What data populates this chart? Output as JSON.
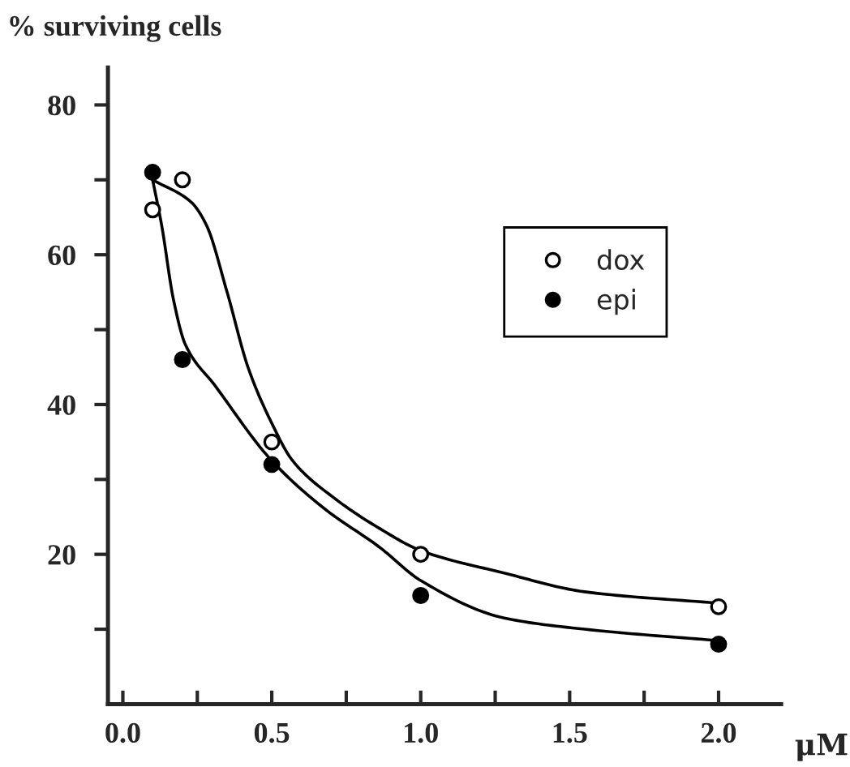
{
  "chart_data": {
    "type": "scatter",
    "ylabel": "% surviving cells",
    "xlabel": "μM",
    "xlim": [
      -0.05,
      2.21
    ],
    "ylim": [
      0,
      85
    ],
    "xticks": [
      {
        "value": 0,
        "label": "0.0"
      },
      {
        "value": 0.25,
        "label": null
      },
      {
        "value": 0.5,
        "label": "0.5"
      },
      {
        "value": 0.75,
        "label": null
      },
      {
        "value": 1.0,
        "label": "1.0"
      },
      {
        "value": 1.25,
        "label": null
      },
      {
        "value": 1.5,
        "label": "1.5"
      },
      {
        "value": 1.75,
        "label": null
      },
      {
        "value": 2.0,
        "label": "2.0"
      }
    ],
    "yticks": [
      {
        "value": 10,
        "label": null
      },
      20,
      {
        "value": 30,
        "label": null
      },
      40,
      {
        "value": 50,
        "label": null
      },
      60,
      {
        "value": 70,
        "label": null
      },
      80
    ],
    "grid": false,
    "legend": "top right",
    "series": [
      {
        "name": "dox",
        "marker": "circle",
        "color": "#ffffff",
        "x": [
          0.1,
          0.2,
          0.5,
          1.0,
          2.0
        ],
        "values": [
          66,
          70,
          35,
          20,
          13
        ]
      },
      {
        "name": "epi",
        "marker": "circle",
        "color": "#000000",
        "x": [
          0.1,
          0.2,
          0.5,
          1.0,
          2.0
        ],
        "values": [
          71,
          46,
          32,
          14.5,
          8
        ]
      },
      {
        "type": "line",
        "color": "#000000",
        "x": [
          0.1,
          0.23,
          0.28,
          0.35,
          0.42,
          0.5,
          0.57,
          0.71,
          0.86,
          1.0,
          1.28,
          1.55,
          1.99
        ],
        "values": [
          70,
          67,
          64,
          55,
          45,
          37.5,
          32.5,
          27.5,
          23.5,
          20.5,
          17.5,
          15,
          13.5
        ]
      },
      {
        "type": "line",
        "color": "#000000",
        "x": [
          0.1,
          0.13,
          0.17,
          0.21,
          0.31,
          0.5,
          0.68,
          0.86,
          1.0,
          1.28,
          1.55,
          1.99
        ],
        "values": [
          70,
          64,
          54,
          48,
          42.5,
          32.5,
          26,
          21,
          16.5,
          11.5,
          10,
          8.5
        ]
      }
    ]
  }
}
